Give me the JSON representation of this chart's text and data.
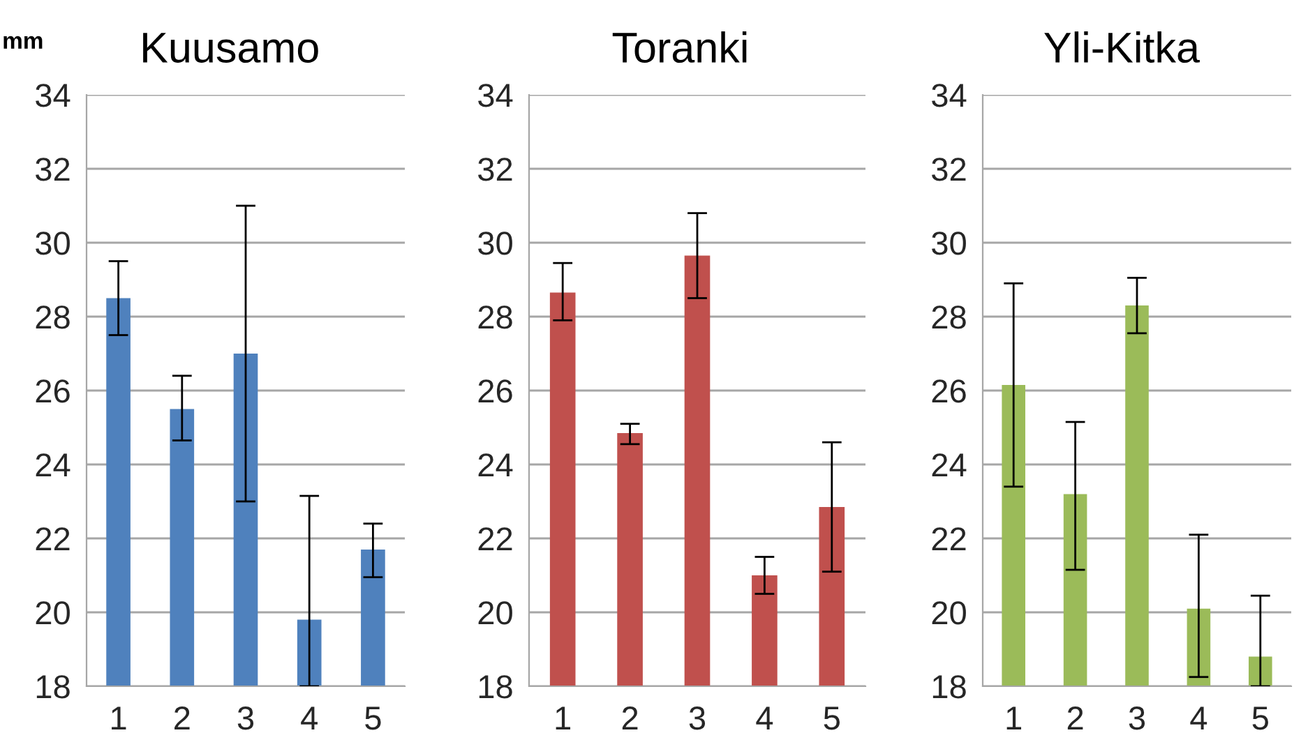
{
  "chart_data": [
    {
      "type": "bar",
      "title": "Kuusamo",
      "ylabel": "mm",
      "categories": [
        "1",
        "2",
        "3",
        "4",
        "5"
      ],
      "color": "#4f81bd",
      "values": [
        28.5,
        25.5,
        27.0,
        19.8,
        21.7
      ],
      "errors": [
        [
          27.5,
          29.5
        ],
        [
          24.65,
          26.4
        ],
        [
          23.0,
          31.0
        ],
        [
          18.0,
          23.15
        ],
        [
          20.95,
          22.4
        ]
      ],
      "ylim": [
        18,
        34
      ],
      "yticks": [
        18,
        20,
        22,
        24,
        26,
        28,
        30,
        32,
        34
      ],
      "grid": "y"
    },
    {
      "type": "bar",
      "title": "Toranki",
      "categories": [
        "1",
        "2",
        "3",
        "4",
        "5"
      ],
      "color": "#c0504d",
      "values": [
        28.65,
        24.85,
        29.65,
        21.0,
        22.85
      ],
      "errors": [
        [
          27.9,
          29.45
        ],
        [
          24.55,
          25.1
        ],
        [
          28.5,
          30.8
        ],
        [
          20.5,
          21.5
        ],
        [
          21.1,
          24.6
        ]
      ],
      "ylim": [
        18,
        34
      ],
      "yticks": [
        18,
        20,
        22,
        24,
        26,
        28,
        30,
        32,
        34
      ],
      "grid": "y"
    },
    {
      "type": "bar",
      "title": "Yli-Kitka",
      "categories": [
        "1",
        "2",
        "3",
        "4",
        "5"
      ],
      "color": "#9bbb59",
      "values": [
        26.15,
        23.2,
        28.3,
        20.1,
        18.8
      ],
      "errors": [
        [
          23.4,
          28.9
        ],
        [
          21.15,
          25.15
        ],
        [
          27.55,
          29.05
        ],
        [
          18.25,
          22.1
        ],
        [
          18.0,
          20.45
        ]
      ],
      "ylim": [
        18,
        34
      ],
      "yticks": [
        18,
        20,
        22,
        24,
        26,
        28,
        30,
        32,
        34
      ],
      "grid": "y"
    }
  ]
}
